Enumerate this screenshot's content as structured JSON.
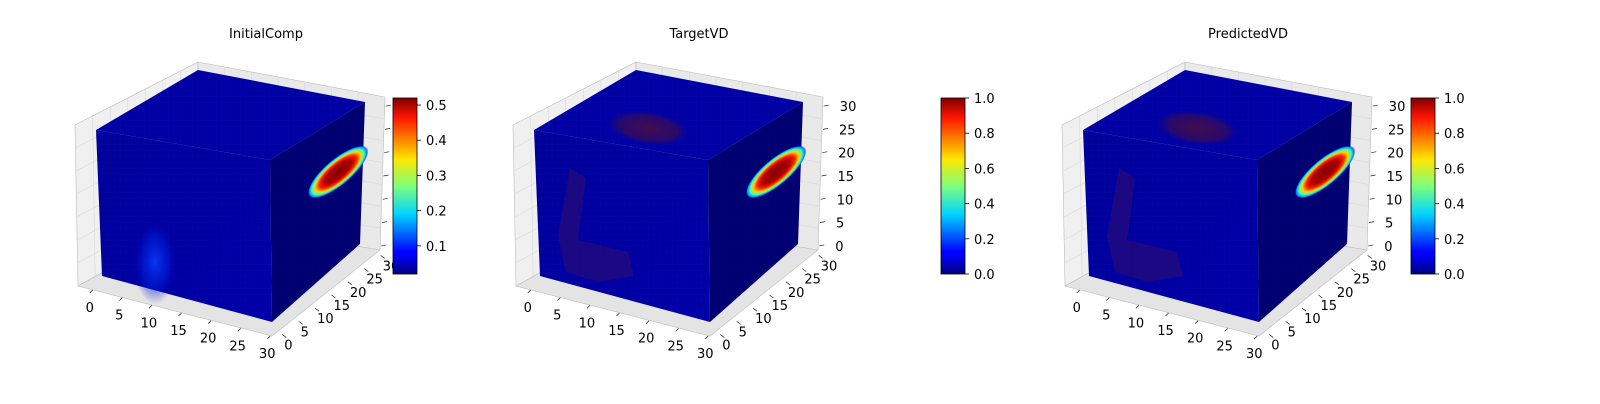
{
  "figure": {
    "panels": [
      {
        "title": "InitialComp",
        "colorbar": {
          "colormap": "jet",
          "min": 0.02,
          "max": 0.52,
          "ticks": [
            "0.1",
            "0.2",
            "0.3",
            "0.4",
            "0.5"
          ]
        }
      },
      {
        "title": "TargetVD",
        "colorbar": {
          "colormap": "jet",
          "min": 0.0,
          "max": 1.0,
          "ticks": [
            "0.0",
            "0.2",
            "0.4",
            "0.6",
            "0.8",
            "1.0"
          ]
        }
      },
      {
        "title": "PredictedVD",
        "colorbar": {
          "colormap": "jet",
          "min": 0.0,
          "max": 1.0,
          "ticks": [
            "0.0",
            "0.2",
            "0.4",
            "0.6",
            "0.8",
            "1.0"
          ]
        }
      }
    ],
    "axis_ticks": {
      "x": [
        "0",
        "5",
        "10",
        "15",
        "20",
        "25",
        "30"
      ],
      "y": [
        "0",
        "5",
        "10",
        "15",
        "20",
        "25",
        "30"
      ],
      "z": [
        "0",
        "5",
        "10",
        "15",
        "20",
        "25",
        "30"
      ]
    },
    "colors": {
      "cube_dark": "#00008b",
      "cube_face": "#00009c",
      "hot": "#8b0000",
      "pane": "#f0f0f0",
      "grid": "#d8d8d8"
    }
  },
  "chart_data": [
    {
      "type": "heatmap",
      "plot": "3d-voxels",
      "title": "InitialComp",
      "xlim": [
        0,
        32
      ],
      "ylim": [
        0,
        32
      ],
      "zlim": [
        0,
        32
      ],
      "z_tick_labels_visible": false,
      "colorbar": {
        "min": 0.02,
        "max": 0.52,
        "ticks": [
          0.1,
          0.2,
          0.3,
          0.4,
          0.5
        ]
      },
      "features": [
        {
          "face": "side (y=32)",
          "shape": "ellipse",
          "value": 0.52
        },
        {
          "face": "front (x=0)",
          "shape": "vertical blob near bottom",
          "value": 0.12
        }
      ],
      "background_value": 0.02
    },
    {
      "type": "heatmap",
      "plot": "3d-voxels",
      "title": "TargetVD",
      "xlim": [
        0,
        32
      ],
      "ylim": [
        0,
        32
      ],
      "zlim": [
        0,
        32
      ],
      "colorbar": {
        "min": 0.0,
        "max": 1.0,
        "ticks": [
          0.0,
          0.2,
          0.4,
          0.6,
          0.8,
          1.0
        ]
      },
      "features": [
        {
          "face": "side (y=32)",
          "shape": "ellipse",
          "value": 1.0
        },
        {
          "face": "top",
          "shape": "ellipse (faint)",
          "value": 0.9
        },
        {
          "face": "front",
          "shape": "L-shape (faint)",
          "value": 0.9
        }
      ],
      "background_value": 0.0
    },
    {
      "type": "heatmap",
      "plot": "3d-voxels",
      "title": "PredictedVD",
      "xlim": [
        0,
        32
      ],
      "ylim": [
        0,
        32
      ],
      "zlim": [
        0,
        32
      ],
      "colorbar": {
        "min": 0.0,
        "max": 1.0,
        "ticks": [
          0.0,
          0.2,
          0.4,
          0.6,
          0.8,
          1.0
        ]
      },
      "features": [
        {
          "face": "side (y=32)",
          "shape": "ellipse",
          "value": 1.0
        },
        {
          "face": "top",
          "shape": "ellipse (faint)",
          "value": 0.9
        },
        {
          "face": "front",
          "shape": "L-shape (faint)",
          "value": 0.9
        }
      ],
      "background_value": 0.0
    }
  ]
}
